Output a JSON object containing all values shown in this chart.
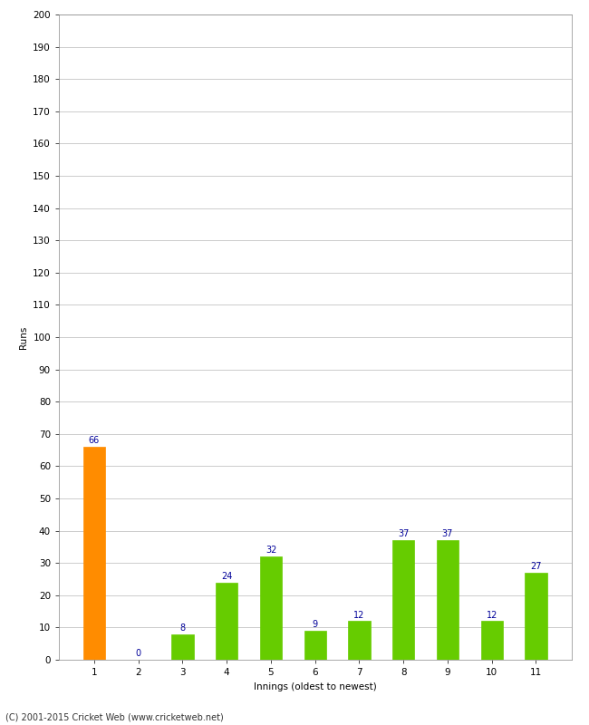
{
  "innings": [
    1,
    2,
    3,
    4,
    5,
    6,
    7,
    8,
    9,
    10,
    11
  ],
  "runs": [
    66,
    0,
    8,
    24,
    32,
    9,
    12,
    37,
    37,
    12,
    27
  ],
  "bar_colors": [
    "#FF8C00",
    "#66CC00",
    "#66CC00",
    "#66CC00",
    "#66CC00",
    "#66CC00",
    "#66CC00",
    "#66CC00",
    "#66CC00",
    "#66CC00",
    "#66CC00"
  ],
  "ylabel": "Runs",
  "xlabel": "Innings (oldest to newest)",
  "ylim": [
    0,
    200
  ],
  "yticks": [
    0,
    10,
    20,
    30,
    40,
    50,
    60,
    70,
    80,
    90,
    100,
    110,
    120,
    130,
    140,
    150,
    160,
    170,
    180,
    190,
    200
  ],
  "label_color": "#000099",
  "label_fontsize": 7,
  "tick_fontsize": 7.5,
  "axis_label_fontsize": 7.5,
  "footer": "(C) 2001-2015 Cricket Web (www.cricketweb.net)",
  "background_color": "#ffffff",
  "grid_color": "#cccccc",
  "bar_width": 0.5
}
